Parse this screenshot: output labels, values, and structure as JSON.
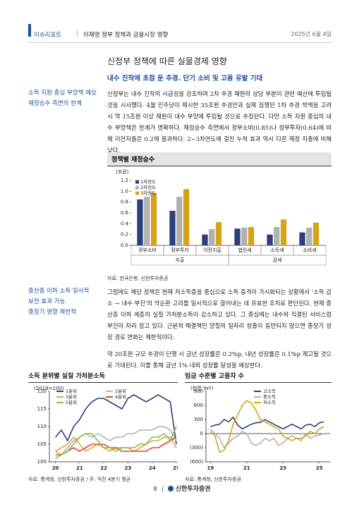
{
  "header": {
    "report": "이슈리포트",
    "title": "이재명 정부 정책과 금융시장 영향",
    "date": "2025년 6월 4일"
  },
  "page": {
    "title": "신정부 정책에 따른 실물경제 영향",
    "subtitle": "내수 진작에 초점 둔 추경. 단기 소비 및 고용 유발 기대"
  },
  "sections": [
    {
      "note": [
        "소득 지원 중심 부양책 예상",
        "재정승수 측면의 한계"
      ],
      "paragraphs": [
        "신정부는 내수 진작의 시급성을 강조하며 2차 추경 재원의 상당 부분이 관련 예산에 투입될 것을 시사했다. 4월 민주당이 제시한 35조원 추경안과 실제 집행된 1차 추경 착액을 고려 시 약 15조원 이상 재원이 내수 부양에 투입될 것으로 추정된다. 다만 소득 지원 중심의 내수 부양책은 한계가 명확하다. 재정승수 측면에서 정부소비(0.85)나 정부투자(0.64)에 비해 이전지출은 0.2에 불과하다. 2~3차연도에 걸친 누적 효과 역시 다른 재정 지출에 비해 낮다."
      ]
    },
    {
      "note": [
        "중산층 이하 소득 일시적",
        "보전 효과 가능.",
        "중장기 영향 제한적"
      ],
      "paragraphs": [
        "그럼에도 해당 정책은 현재 저소득층을 중심으로 소득 충격이 가시화되는 상황에서 '소득 감소 → 내수 부진'의 악순환 고리를 일시적으로 끊어내는 데 유효한 조치로 판단된다. 현재 중산층 이하 계층의 실질 가처분소득이 감소하고 있다. 그 중심에는 내수와 직결된 서비스업 부진이 자리 잡고 있다. 근본적 해결책인 양질의 일자리 창출이 동반되지 않으면 중장기 성장 경로 변화는 제한적이다.",
        "약 20조원 규모 추경이 단행 시 금년 성장률은 0.2%p, 내년 성장률은 0.1%p 제고될 것으로 기대된다. 이를 통해 금년 1% 내외 성장률 달성을 예상한다."
      ]
    }
  ],
  "chart_data": [
    {
      "type": "bar",
      "title": "정책별 재정승수",
      "ylabel": "(조원)",
      "source": "자료: 한국은행, 신한투자증권",
      "groups": [
        {
          "name": "지출",
          "categories": [
            "정부소비",
            "정부투자",
            "이전지출"
          ]
        },
        {
          "name": "감세",
          "categories": [
            "법인세",
            "소득세",
            "소비세"
          ]
        }
      ],
      "series": [
        {
          "name": "1차연도",
          "color": "#2b3f7c",
          "values": [
            0.85,
            0.64,
            0.2,
            0.31,
            0.2,
            0.24
          ]
        },
        {
          "name": "2차연도",
          "color": "#b1b1b1",
          "values": [
            0.9,
            0.9,
            0.3,
            0.33,
            0.34,
            0.33
          ]
        },
        {
          "name": "3차연도",
          "color": "#d6a21a",
          "values": [
            0.97,
            1.04,
            0.43,
            0.34,
            0.48,
            0.42
          ]
        }
      ],
      "ylim": [
        0,
        1.2
      ],
      "yticks": [
        {
          "value": 0,
          "label": "0.0"
        },
        0.2,
        0.4,
        0.6,
        0.8,
        {
          "value": 1,
          "label": "1.0"
        },
        1.2
      ],
      "legend": "upper-left"
    },
    {
      "type": "line",
      "title": "소득 분위별 실질 가처분소득",
      "ylabel": "(2019=100)",
      "source": "자료: 통계청, 신한투자증권 / 주: 직전 4분기 평균",
      "x": [
        20,
        20.25,
        20.5,
        20.75,
        21,
        21.25,
        21.5,
        21.75,
        22,
        22.25,
        22.5,
        22.75,
        23,
        23.25,
        23.5,
        23.75,
        24,
        24.25,
        24.5,
        24.75,
        25
      ],
      "series": [
        {
          "name": "1분위",
          "color": "#2b3f7c",
          "values": [
            107,
            109,
            106,
            110,
            112,
            115,
            117,
            118,
            118,
            117,
            116,
            115,
            118,
            119,
            118,
            117,
            118,
            119,
            118,
            117,
            105
          ]
        },
        {
          "name": "2분위",
          "color": "#b1b1b1",
          "values": [
            103,
            102,
            104,
            106,
            107,
            108,
            107,
            108,
            107,
            106,
            107,
            107,
            108,
            108,
            109,
            109,
            109,
            110,
            110,
            109,
            106
          ]
        },
        {
          "name": "3분위",
          "color": "#e8a33a",
          "values": [
            103,
            104,
            105,
            107,
            105,
            103,
            104,
            105,
            104,
            103,
            104,
            104,
            104,
            103,
            104,
            105,
            106,
            106,
            107,
            107,
            104
          ]
        },
        {
          "name": "4분위",
          "color": "#e0463a",
          "values": [
            102,
            102,
            103,
            104,
            103,
            104,
            105,
            105,
            105,
            104,
            104,
            103,
            103,
            103,
            103,
            103,
            104,
            104,
            105,
            106,
            107
          ]
        },
        {
          "name": "5분위",
          "color": "#7cc243",
          "values": [
            101,
            102,
            103,
            105,
            107,
            108,
            108,
            106,
            104,
            104,
            103,
            104,
            104,
            104,
            105,
            105,
            107,
            107,
            108,
            106,
            110
          ]
        }
      ],
      "xlim": [
        19.75,
        25
      ],
      "xticks": [
        20,
        21,
        22,
        23,
        24,
        25
      ],
      "ylim": [
        100,
        120
      ],
      "yticks": [
        100,
        105,
        110,
        115,
        120
      ],
      "legend": "upper-left"
    },
    {
      "type": "line",
      "title": "임금 수준별 고용자 수",
      "ylabel": "(천명 YoY)",
      "source": "자료: 통계청, 신한투자증권",
      "x": [
        19,
        19.25,
        19.5,
        19.75,
        20,
        20.25,
        20.5,
        20.75,
        21,
        21.25,
        21.5,
        21.75,
        22,
        22.25,
        22.5,
        22.75,
        23,
        23.25,
        23.5,
        23.75,
        24,
        24.25,
        24.5,
        24.75,
        25,
        25.25
      ],
      "series": [
        {
          "name": "고소득",
          "color": "#2b3f7c",
          "values": [
            150,
            180,
            200,
            300,
            250,
            350,
            180,
            100,
            150,
            200,
            230,
            240,
            300,
            250,
            200,
            150,
            100,
            150,
            200,
            150,
            100,
            180,
            200,
            150,
            230,
            250
          ]
        },
        {
          "name": "중소득",
          "color": "#b1b1b1",
          "values": [
            100,
            0,
            -100,
            -300,
            -200,
            -100,
            -50,
            50,
            0,
            -200,
            -250,
            -200,
            -100,
            -150,
            -100,
            -250,
            -200,
            -100,
            -50,
            -100,
            -150,
            0,
            -100,
            -50,
            -30,
            0
          ]
        },
        {
          "name": "저소득",
          "color": "#d6a21a",
          "values": [
            50,
            -50,
            -400,
            -350,
            -150,
            200,
            400,
            600,
            700,
            650,
            500,
            300,
            250,
            200,
            150,
            100,
            -50,
            -100,
            -150,
            -100,
            -100,
            -50,
            50,
            0,
            100,
            150
          ]
        }
      ],
      "xlim": [
        18.75,
        25.6
      ],
      "xticks": [
        19,
        21,
        23,
        25
      ],
      "ylim": [
        -600,
        900
      ],
      "yticks": [
        {
          "value": -600,
          "label": "(600)"
        },
        {
          "value": -300,
          "label": "(300)"
        },
        0,
        300,
        600,
        900
      ],
      "legend": "upper-center"
    }
  ],
  "footer": {
    "page": "8",
    "brand": "신한투자증권"
  }
}
